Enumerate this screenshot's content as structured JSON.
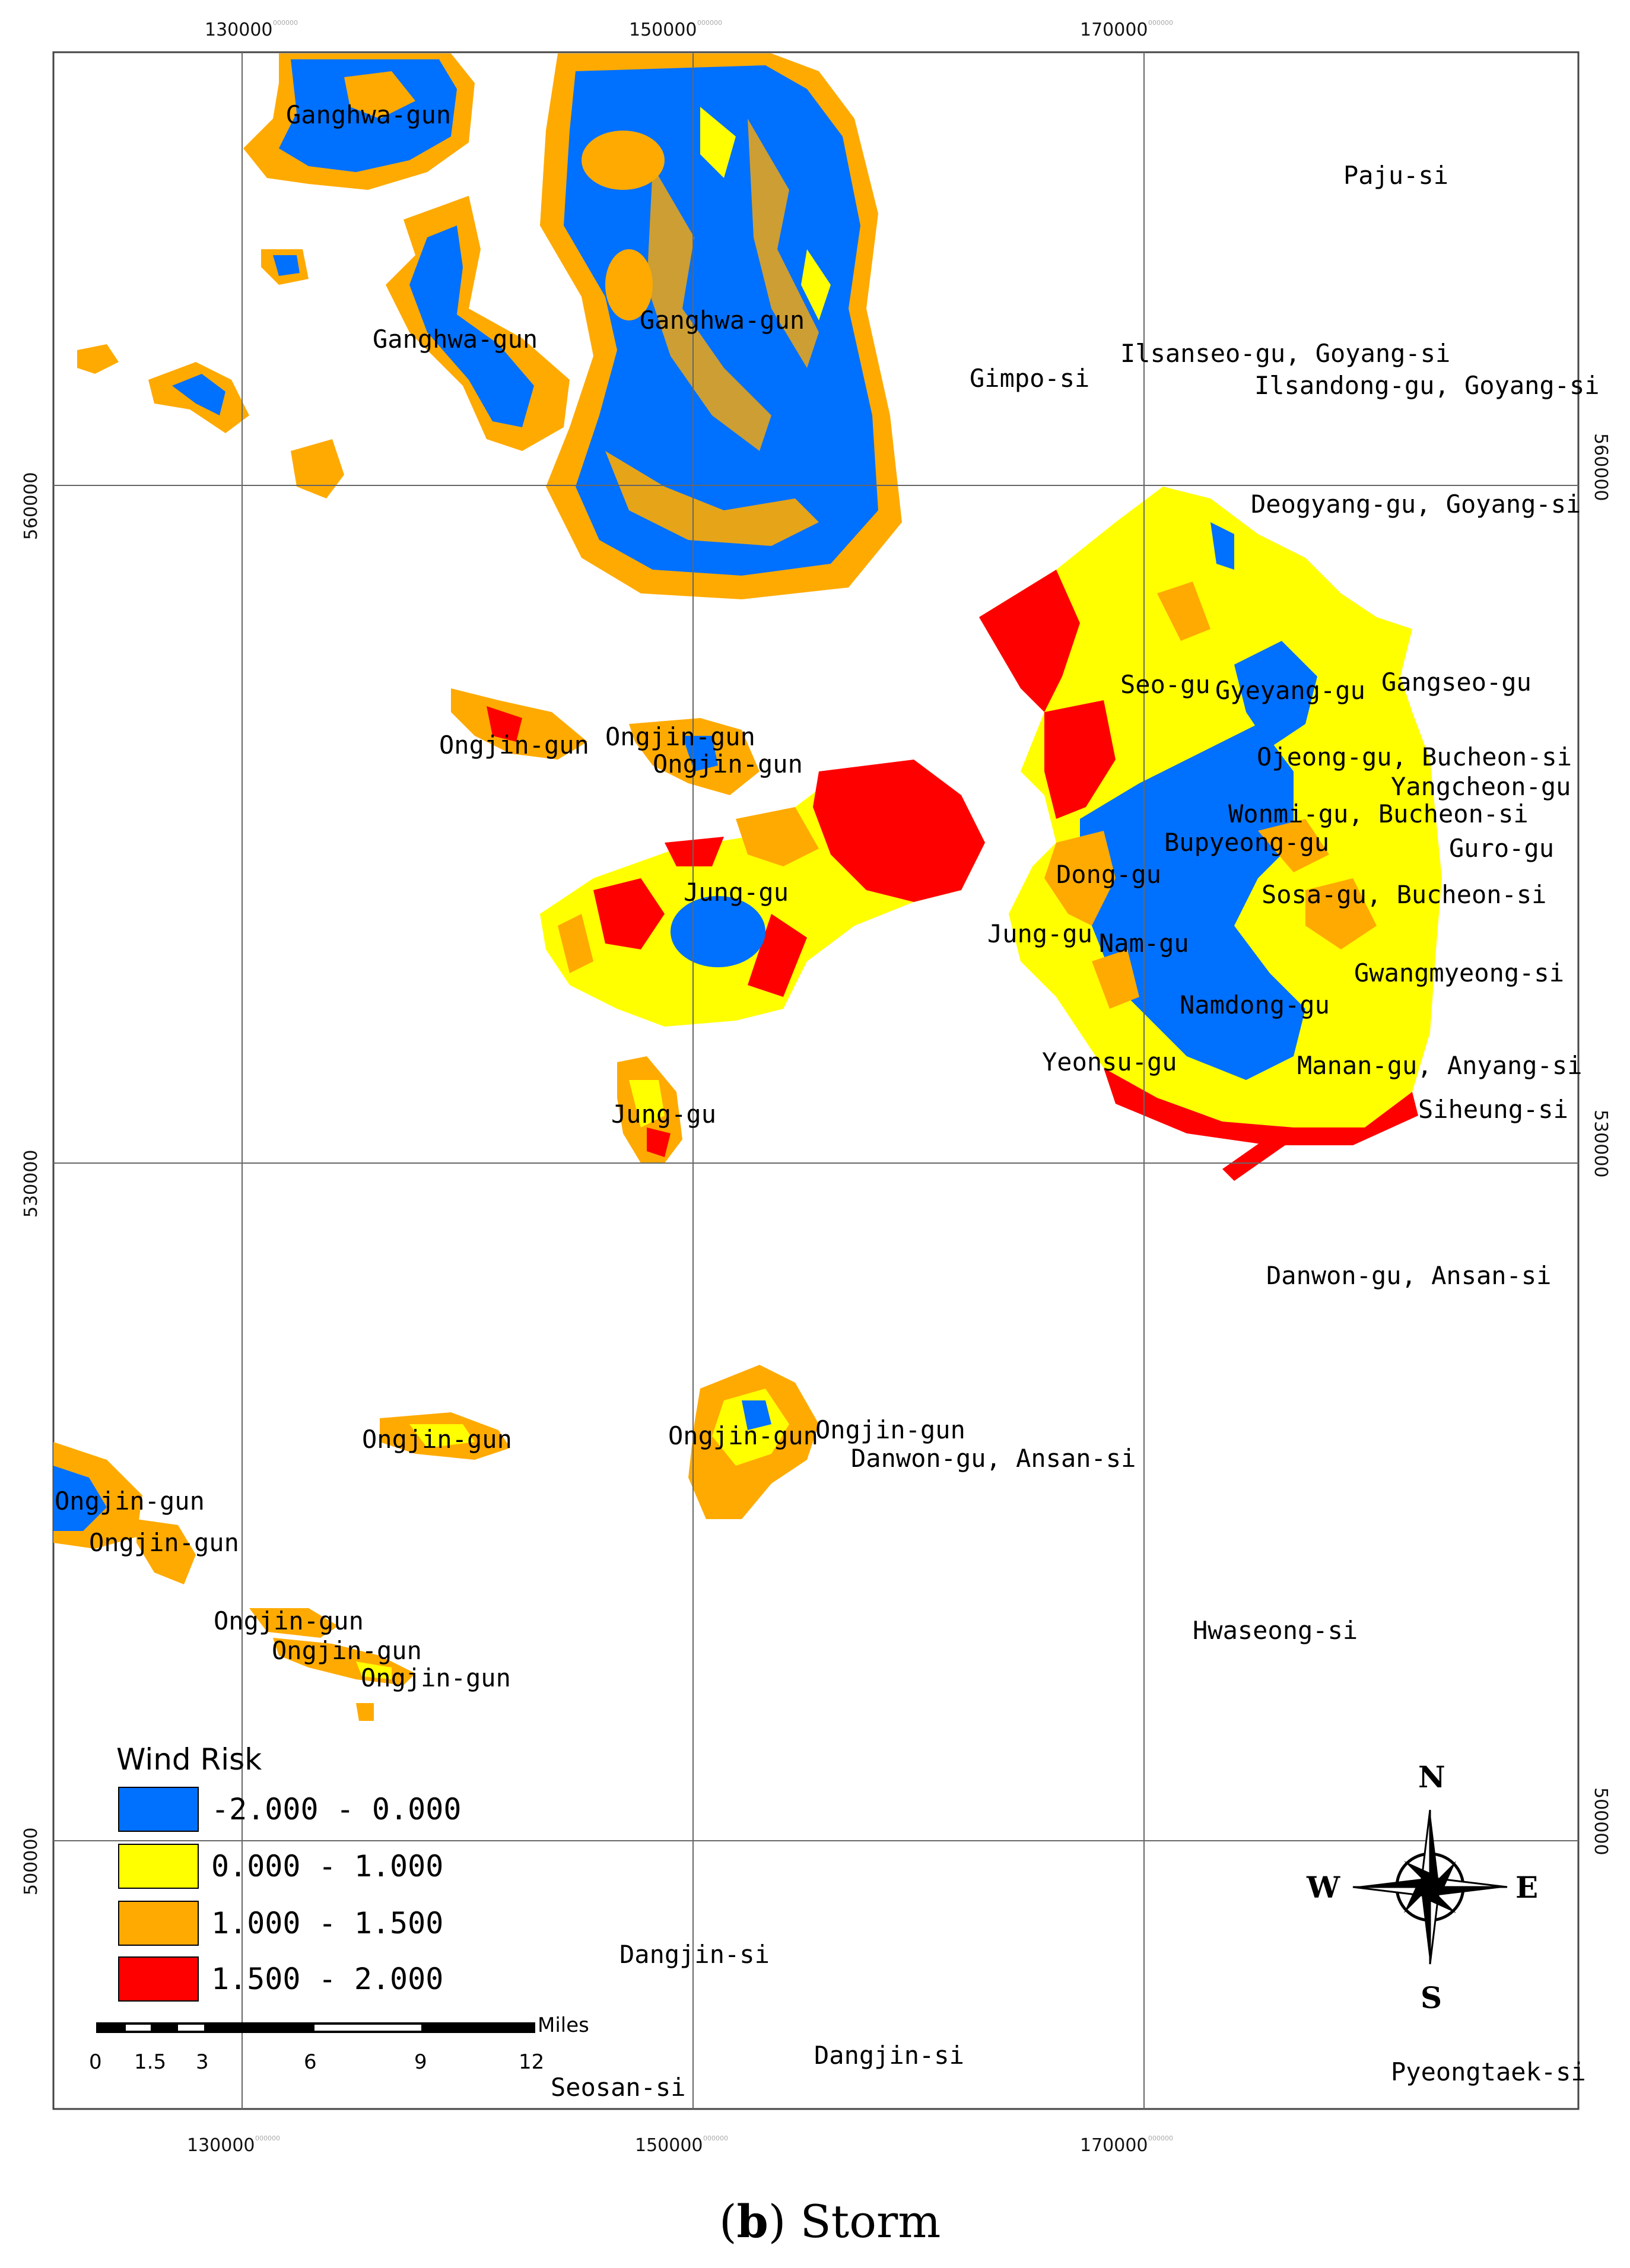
{
  "axes": {
    "x_ticks": [
      "130000",
      "150000",
      "170000"
    ],
    "y_ticks": [
      "560000",
      "530000",
      "500000"
    ],
    "tick_suffix": "000000"
  },
  "places": [
    {
      "id": "ganghwa-1",
      "label": "Ganghwa-gun"
    },
    {
      "id": "ganghwa-2",
      "label": "Ganghwa-gun"
    },
    {
      "id": "ganghwa-3",
      "label": "Ganghwa-gun"
    },
    {
      "id": "paju",
      "label": "Paju-si"
    },
    {
      "id": "gimpo",
      "label": "Gimpo-si"
    },
    {
      "id": "ilsanseo",
      "label": "Ilsanseo-gu, Goyang-si"
    },
    {
      "id": "ilsandong",
      "label": "Ilsandong-gu, Goyang-si"
    },
    {
      "id": "deogyang",
      "label": "Deogyang-gu, Goyang-si"
    },
    {
      "id": "gangseo",
      "label": "Gangseo-gu"
    },
    {
      "id": "seo",
      "label": "Seo-gu"
    },
    {
      "id": "gyeyang",
      "label": "Gyeyang-gu"
    },
    {
      "id": "ojeong",
      "label": "Ojeong-gu, Bucheon-si"
    },
    {
      "id": "yangcheon",
      "label": "Yangcheon-gu"
    },
    {
      "id": "wonmi",
      "label": "Wonmi-gu, Bucheon-si"
    },
    {
      "id": "bupyeong",
      "label": "Bupyeong-gu"
    },
    {
      "id": "guro",
      "label": "Guro-gu"
    },
    {
      "id": "dong",
      "label": "Dong-gu"
    },
    {
      "id": "sosa",
      "label": "Sosa-gu, Bucheon-si"
    },
    {
      "id": "jung-incheon",
      "label": "Jung-gu"
    },
    {
      "id": "nam",
      "label": "Nam-gu"
    },
    {
      "id": "gwangmyeong",
      "label": "Gwangmyeong-si"
    },
    {
      "id": "namdong",
      "label": "Namdong-gu"
    },
    {
      "id": "yeonsu",
      "label": "Yeonsu-gu"
    },
    {
      "id": "manan",
      "label": "Manan-gu, Anyang-si"
    },
    {
      "id": "siheung",
      "label": "Siheung-si"
    },
    {
      "id": "ongjin-1",
      "label": "Ongjin-gun"
    },
    {
      "id": "ongjin-2",
      "label": "Ongjin-gun"
    },
    {
      "id": "ongjin-3",
      "label": "Ongjin-gun"
    },
    {
      "id": "jung-yeongjong",
      "label": "Jung-gu"
    },
    {
      "id": "jung-muui",
      "label": "Jung-gu"
    },
    {
      "id": "danwon-1",
      "label": "Danwon-gu, Ansan-si"
    },
    {
      "id": "ongjin-4",
      "label": "Ongjin-gun"
    },
    {
      "id": "ongjin-5",
      "label": "Ongjin-gun"
    },
    {
      "id": "ongjin-6",
      "label": "Ongjin-gun"
    },
    {
      "id": "danwon-2",
      "label": "Danwon-gu, Ansan-si"
    },
    {
      "id": "ongjin-7",
      "label": "Ongjin-gun"
    },
    {
      "id": "ongjin-8",
      "label": "Ongjin-gun"
    },
    {
      "id": "ongjin-9",
      "label": "Ongjin-gun"
    },
    {
      "id": "ongjin-10",
      "label": "Ongjin-gun"
    },
    {
      "id": "ongjin-11",
      "label": "Ongjin-gun"
    },
    {
      "id": "hwaseong",
      "label": "Hwaseong-si"
    },
    {
      "id": "dangjin-1",
      "label": "Dangjin-si"
    },
    {
      "id": "dangjin-2",
      "label": "Dangjin-si"
    },
    {
      "id": "seosan",
      "label": "Seosan-si"
    },
    {
      "id": "pyeongtaek",
      "label": "Pyeongtaek-si"
    }
  ],
  "legend": {
    "title": "Wind Risk",
    "classes": [
      {
        "label": "-2.000 - 0.000",
        "color": "#0070ff"
      },
      {
        "label": "0.000 - 1.000",
        "color": "#ffff00"
      },
      {
        "label": "1.000 - 1.500",
        "color": "#ffaa00"
      },
      {
        "label": "1.500 - 2.000",
        "color": "#ff0000"
      }
    ]
  },
  "scalebar": {
    "unit": "Miles",
    "labels": [
      "0",
      "1.5",
      "3",
      "6",
      "9",
      "12"
    ]
  },
  "compass": {
    "n": "N",
    "s": "S",
    "e": "E",
    "w": "W"
  },
  "caption": {
    "letter": "b",
    "rest": ") Storm",
    "open": "("
  }
}
